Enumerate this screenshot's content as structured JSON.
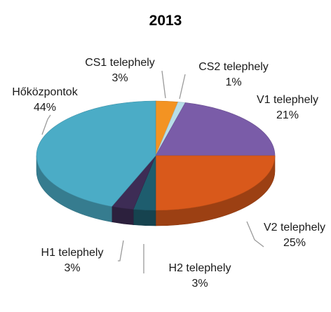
{
  "chart_data": {
    "type": "pie",
    "title": "2013",
    "slices": [
      {
        "label": "CS1 telephely",
        "percent_label": "3%",
        "value": 3,
        "color": "#F39322"
      },
      {
        "label": "CS2 telephely",
        "percent_label": "1%",
        "value": 1,
        "color": "#B7DEE8"
      },
      {
        "label": "V1 telephely",
        "percent_label": "21%",
        "value": 21,
        "color": "#7A5CA8"
      },
      {
        "label": "V2 telephely",
        "percent_label": "25%",
        "value": 25,
        "color": "#D9591B"
      },
      {
        "label": "H2 telephely",
        "percent_label": "3%",
        "value": 3,
        "color": "#1E5D6E"
      },
      {
        "label": "H1 telephely",
        "percent_label": "3%",
        "value": 3,
        "color": "#3D2C55"
      },
      {
        "label": "Hőközpontok",
        "percent_label": "44%",
        "value": 44,
        "color": "#4BACC6"
      }
    ]
  }
}
